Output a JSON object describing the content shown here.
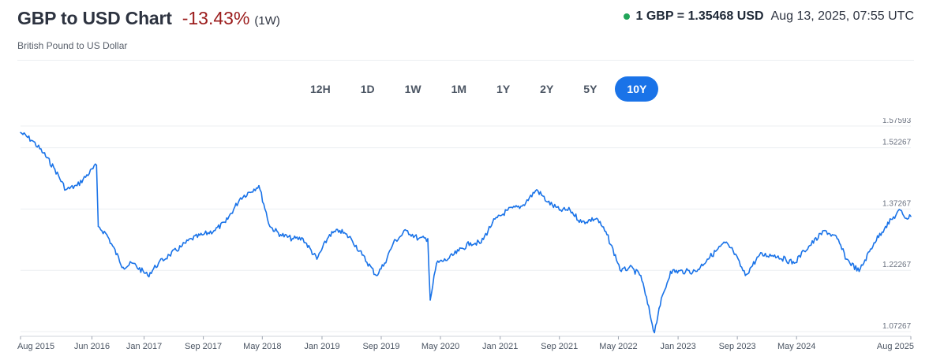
{
  "header": {
    "title": "GBP to USD Chart",
    "change": "-13.43%",
    "period": "(1W)",
    "subtitle": "British Pound to US Dollar"
  },
  "rate": {
    "value": "1 GBP = 1.35468 USD",
    "time": "Aug 13, 2025, 07:55 UTC",
    "status_color": "#22a559"
  },
  "periods": {
    "items": [
      "12H",
      "1D",
      "1W",
      "1M",
      "1Y",
      "2Y",
      "5Y",
      "10Y"
    ],
    "active": "10Y",
    "active_color": "#1a73e8"
  },
  "chart_data": {
    "type": "line",
    "title": "",
    "xlabel": "",
    "ylabel": "",
    "ylim": [
      1.07267,
      1.57593
    ],
    "yticks": [
      1.57593,
      1.52267,
      1.37267,
      1.22267,
      1.07267
    ],
    "yticks_labels": [
      "1.57593",
      "1.52267",
      "1.37267",
      "1.22267",
      "1.07267"
    ],
    "xticks": [
      "Aug 2015",
      "Jun 2016",
      "Jan 2017",
      "Sep 2017",
      "May 2018",
      "Jan 2019",
      "Sep 2019",
      "May 2020",
      "Jan 2021",
      "Sep 2021",
      "May 2022",
      "Jan 2023",
      "Sep 2023",
      "May 2024",
      "Aug 2025"
    ],
    "xlim": [
      "2015-08-13",
      "2025-08-13"
    ],
    "line_color": "#1a73e8",
    "grid": true,
    "series": [
      {
        "x": [
          "2015-08-13",
          "2015-10-01",
          "2015-11-15",
          "2016-01-01",
          "2016-02-15",
          "2016-04-01",
          "2016-06-20",
          "2016-06-27",
          "2016-08-01",
          "2016-10-07",
          "2016-11-15",
          "2017-01-16",
          "2017-03-01",
          "2017-04-15",
          "2017-06-01",
          "2017-07-15",
          "2017-09-01",
          "2017-10-15",
          "2017-12-01",
          "2018-02-01",
          "2018-04-17",
          "2018-06-01",
          "2018-07-15",
          "2018-09-01",
          "2018-10-15",
          "2018-12-11",
          "2019-02-01",
          "2019-03-15",
          "2019-05-01",
          "2019-06-15",
          "2019-08-12",
          "2019-09-15",
          "2019-10-21",
          "2019-12-13",
          "2020-02-01",
          "2020-03-10",
          "2020-03-20",
          "2020-04-15",
          "2020-06-01",
          "2020-07-15",
          "2020-09-01",
          "2020-10-15",
          "2020-12-01",
          "2021-02-01",
          "2021-04-01",
          "2021-05-31",
          "2021-07-15",
          "2021-09-01",
          "2021-10-15",
          "2021-12-01",
          "2022-02-01",
          "2022-03-15",
          "2022-05-13",
          "2022-06-15",
          "2022-08-01",
          "2022-09-26",
          "2022-10-15",
          "2022-12-01",
          "2023-02-01",
          "2023-03-15",
          "2023-05-01",
          "2023-07-13",
          "2023-08-15",
          "2023-10-04",
          "2023-12-01",
          "2024-02-01",
          "2024-04-22",
          "2024-06-01",
          "2024-08-26",
          "2024-10-15",
          "2024-11-22",
          "2025-01-13",
          "2025-03-15",
          "2025-05-01",
          "2025-07-01",
          "2025-07-25",
          "2025-08-13"
        ],
        "y": [
          1.56,
          1.54,
          1.51,
          1.47,
          1.42,
          1.43,
          1.48,
          1.33,
          1.31,
          1.23,
          1.24,
          1.21,
          1.24,
          1.26,
          1.28,
          1.3,
          1.31,
          1.32,
          1.34,
          1.4,
          1.43,
          1.33,
          1.31,
          1.3,
          1.3,
          1.25,
          1.31,
          1.32,
          1.3,
          1.26,
          1.21,
          1.24,
          1.29,
          1.32,
          1.3,
          1.3,
          1.15,
          1.24,
          1.25,
          1.27,
          1.29,
          1.29,
          1.34,
          1.37,
          1.38,
          1.42,
          1.39,
          1.37,
          1.37,
          1.34,
          1.35,
          1.31,
          1.22,
          1.23,
          1.21,
          1.07,
          1.13,
          1.22,
          1.22,
          1.22,
          1.25,
          1.29,
          1.27,
          1.21,
          1.26,
          1.26,
          1.24,
          1.27,
          1.32,
          1.3,
          1.25,
          1.22,
          1.29,
          1.33,
          1.37,
          1.35,
          1.35468
        ]
      }
    ]
  }
}
